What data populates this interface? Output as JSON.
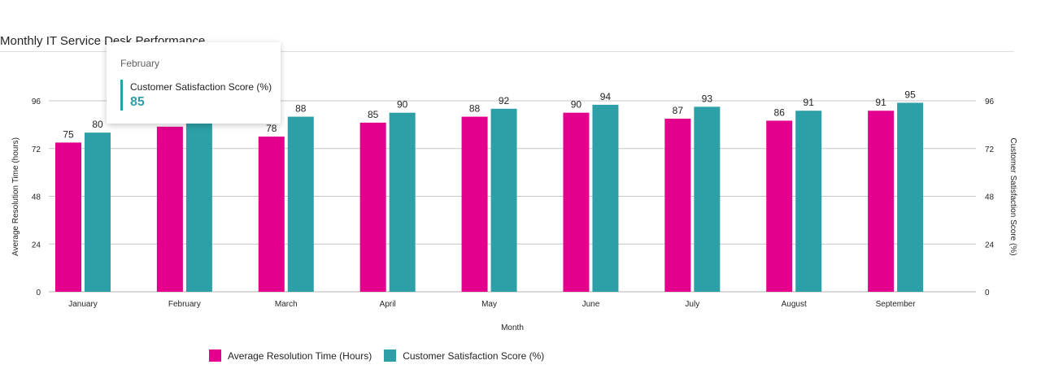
{
  "chart_data": {
    "type": "bar",
    "title": "Monthly IT Service Desk Performance",
    "xlabel": "Month",
    "ylabel": "Average Resolution Time (hours)",
    "y2label": "Customer Satisfaction Score (%)",
    "ylim": [
      0,
      96
    ],
    "y2lim": [
      0,
      96
    ],
    "yticks": [
      0,
      24,
      48,
      72,
      96
    ],
    "grid": true,
    "legend_position": "bottom",
    "categories": [
      "January",
      "February",
      "March",
      "April",
      "May",
      "June",
      "July",
      "August",
      "September"
    ],
    "series": [
      {
        "name": "Average Resolution Time (Hours)",
        "color": "#e3008c",
        "values": [
          75,
          83,
          78,
          85,
          88,
          90,
          87,
          86,
          91
        ]
      },
      {
        "name": "Customer Satisfaction Score (%)",
        "color": "#2ca0a6",
        "values": [
          80,
          85,
          88,
          90,
          92,
          94,
          93,
          91,
          95
        ]
      }
    ]
  },
  "tooltip": {
    "category": "February",
    "series_name": "Customer Satisfaction Score (%)",
    "value": "85",
    "color": "#2ca0a6"
  }
}
